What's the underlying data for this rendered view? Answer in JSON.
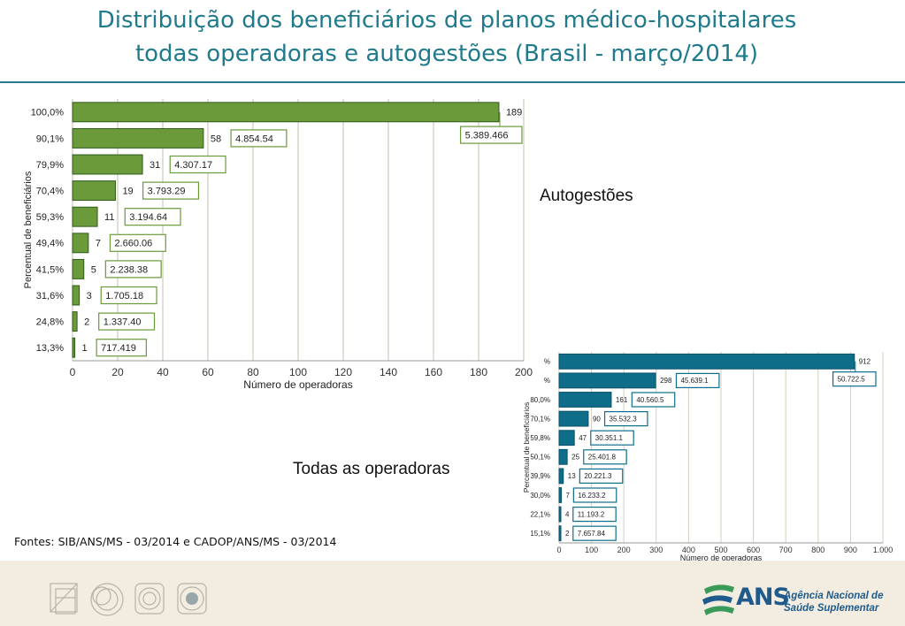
{
  "title": {
    "line1": "Distribuição dos beneficiários de planos médico-hospitalares",
    "line2": "todas operadoras e autogestões (Brasil - março/2014)"
  },
  "labels": {
    "autogestoes": "Autogestões",
    "todas": "Todas as operadoras"
  },
  "source": "Fontes: SIB/ANS/MS - 03/2014 e CADOP/ANS/MS - 03/2014",
  "footer": {
    "logo_acronym": "ANS",
    "agency_line1": "Agência Nacional de",
    "agency_line2": "Saúde Suplementar"
  },
  "colors": {
    "title": "#1f7a8c",
    "bar_autogestoes": "#6a9a3a",
    "bar_todas": "#0e6e8a",
    "footer_band": "#f2ece1",
    "logo": "#1e5b8c"
  },
  "chart_data": [
    {
      "type": "bar",
      "orientation": "horizontal",
      "categories": [
        "100,0%",
        "90,1%",
        "79,9%",
        "70,4%",
        "59,3%",
        "49,4%",
        "41,5%",
        "31,6%",
        "24,8%",
        "13,3%"
      ],
      "values": [
        189,
        58,
        31,
        19,
        11,
        7,
        5,
        3,
        2,
        1
      ],
      "annotations": [
        "5.389.466",
        "4.854.54",
        "4.307.17",
        "3.793.29",
        "3.194.64",
        "2.660.06",
        "2.238.38",
        "1.705.18",
        "1.337.40",
        "717.419"
      ],
      "xlabel": "Número de operadoras",
      "ylabel": "Percentual de beneficiários",
      "xlim": [
        0,
        200
      ],
      "xticks": [
        "0",
        "20",
        "40",
        "60",
        "80",
        "100",
        "120",
        "140",
        "160",
        "180",
        "200"
      ],
      "grid": "vertical"
    },
    {
      "type": "bar",
      "orientation": "horizontal",
      "categories": [
        "%",
        "%",
        "80,0%",
        "70,1%",
        "59,8%",
        "50,1%",
        "39,9%",
        "30,0%",
        "22,1%",
        "15,1%"
      ],
      "values": [
        912,
        298,
        161,
        90,
        47,
        25,
        13,
        7,
        4,
        2
      ],
      "annotations": [
        "50.722.5",
        "45.639.1",
        "40.560.5",
        "35.532.3",
        "30.351.1",
        "25.401.8",
        "20.221.3",
        "16.233.2",
        "11.193.2",
        "7.657.84"
      ],
      "xlabel": "Número de operadoras",
      "ylabel": "Percentual de beneficiários",
      "xlim": [
        0,
        1000
      ],
      "xticks": [
        "0",
        "100",
        "200",
        "300",
        "400",
        "500",
        "600",
        "700",
        "800",
        "900",
        "1.000"
      ],
      "grid": "vertical"
    }
  ]
}
